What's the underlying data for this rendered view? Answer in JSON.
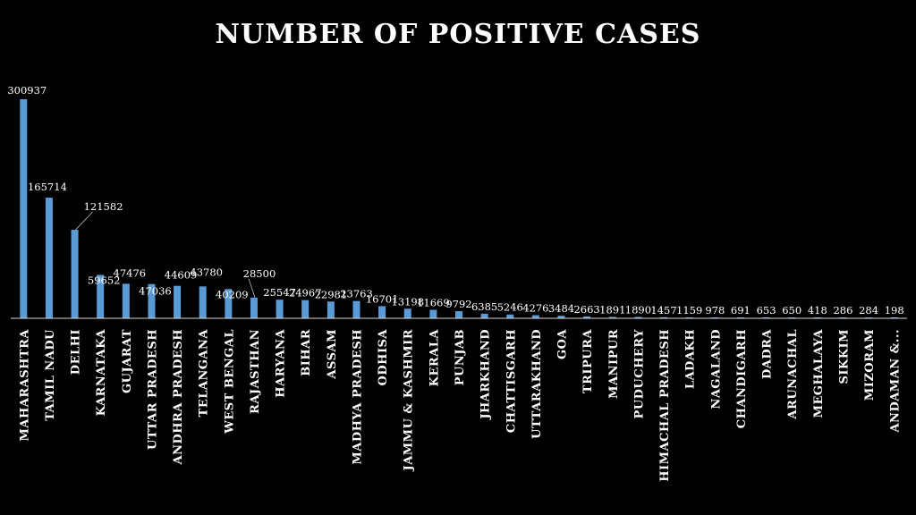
{
  "chart_data": {
    "type": "bar",
    "title": "NUMBER OF POSITIVE CASES",
    "xlabel": "",
    "ylabel": "",
    "ylim": [
      0,
      300937
    ],
    "grid": false,
    "bar_color": "#5b9bd5",
    "background": "#000000",
    "text_color": "#ffffff",
    "categories": [
      "MAHARASHTRA",
      "TAMIL NADU",
      "DELHI",
      "KARNATAKA",
      "GUJARAT",
      "UTTAR PRADESH",
      "ANDHRA PRADESH",
      "TELANGANA",
      "WEST BENGAL",
      "RAJASTHAN",
      "HARYANA",
      "BIHAR",
      "ASSAM",
      "MADHYA PRADESH",
      "ODHISA",
      "JAMMU & KASHMIR",
      "KERALA",
      "PUNJAB",
      "JHARKHAND",
      "CHATTISGARH",
      "UTTARAKHAND",
      "GOA",
      "TRIPURA",
      "MANIPUR",
      "PUDUCHERY",
      "HIMACHAL PRADESH",
      "LADAKH",
      "NAGALAND",
      "CHANDIGARH",
      "DADRA",
      "ARUNACHAL",
      "MEGHALAYA",
      "SIKKIM",
      "MIZORAM",
      "ANDAMAN &..."
    ],
    "values": [
      300937,
      165714,
      121582,
      59652,
      47476,
      47036,
      44609,
      43780,
      40209,
      28500,
      25547,
      24967,
      22981,
      23763,
      16701,
      13198,
      11669,
      9792,
      6385,
      5246,
      4276,
      3484,
      2663,
      1891,
      1890,
      1457,
      1159,
      978,
      691,
      653,
      650,
      418,
      286,
      284,
      198
    ]
  }
}
